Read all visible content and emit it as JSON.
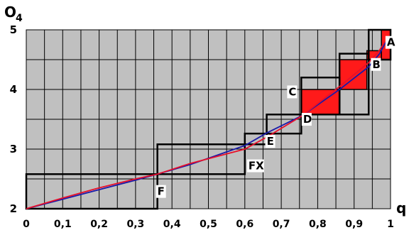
{
  "chart_data": {
    "type": "line",
    "title": "",
    "xlabel": "q",
    "ylabel": "O",
    "ylabel_sub": "4",
    "xlim": [
      0,
      1
    ],
    "ylim": [
      2,
      5
    ],
    "grid": true,
    "x_ticks": [
      {
        "value": 0,
        "label": "0"
      },
      {
        "value": 0.1,
        "label": "0,1"
      },
      {
        "value": 0.2,
        "label": "0,2"
      },
      {
        "value": 0.3,
        "label": "0,3"
      },
      {
        "value": 0.4,
        "label": "0,4"
      },
      {
        "value": 0.5,
        "label": "0,5"
      },
      {
        "value": 0.6,
        "label": "0,6"
      },
      {
        "value": 0.7,
        "label": "0,7"
      },
      {
        "value": 0.8,
        "label": "0,8"
      },
      {
        "value": 0.9,
        "label": "0,9"
      },
      {
        "value": 1,
        "label": "1"
      }
    ],
    "y_ticks": [
      {
        "value": 2,
        "label": "2"
      },
      {
        "value": 3,
        "label": "3"
      },
      {
        "value": 4,
        "label": "4"
      },
      {
        "value": 5,
        "label": "5"
      }
    ],
    "series": [
      {
        "color": "#1a1aa8",
        "x": [
          0,
          0.1,
          0.2,
          0.3,
          0.36,
          0.45,
          0.6,
          0.66,
          0.76,
          0.86,
          0.94,
          0.97,
          0.99
        ],
        "y": [
          2,
          2.16,
          2.32,
          2.48,
          2.58,
          2.74,
          3.06,
          3.27,
          3.57,
          4.0,
          4.38,
          4.6,
          4.83
        ]
      },
      {
        "color": "#e8102a",
        "x": [
          0,
          0.1,
          0.2,
          0.3,
          0.36,
          0.45,
          0.6,
          0.66,
          0.76,
          0.86,
          0.94,
          0.97,
          0.99
        ],
        "y": [
          2,
          2.18,
          2.35,
          2.5,
          2.58,
          2.76,
          3.0,
          3.2,
          3.57,
          4.05,
          4.45,
          4.66,
          4.86
        ]
      }
    ],
    "rectangles": [
      {
        "x0": 0,
        "x1": 0.36,
        "y0": 2,
        "y1": 2.58,
        "fill": "none"
      },
      {
        "x0": 0.36,
        "x1": 0.6,
        "y0": 2.58,
        "y1": 3.08,
        "fill": "none"
      },
      {
        "x0": 0.6,
        "x1": 0.66,
        "y0": 3.08,
        "y1": 3.26,
        "fill": "none"
      },
      {
        "x0": 0.66,
        "x1": 0.755,
        "y0": 3.26,
        "y1": 3.58,
        "fill": "none"
      },
      {
        "x0": 0.755,
        "x1": 0.86,
        "y0": 3.58,
        "y1": 4.2,
        "fill": "none"
      },
      {
        "x0": 0.86,
        "x1": 0.94,
        "y0": 3.58,
        "y1": 4.6,
        "fill": "none"
      },
      {
        "x0": 0.94,
        "x1": 1.0,
        "y0": 4.5,
        "y1": 5.0,
        "fill": "none"
      },
      {
        "x0": 0.755,
        "x1": 0.86,
        "y0": 3.58,
        "y1": 4.0,
        "fill": "#ff1a1a"
      },
      {
        "x0": 0.86,
        "x1": 0.935,
        "y0": 4.0,
        "y1": 4.5,
        "fill": "#ff1a1a"
      },
      {
        "x0": 0.935,
        "x1": 0.975,
        "y0": 4.5,
        "y1": 4.65,
        "fill": "#ff1a1a"
      },
      {
        "x0": 0.975,
        "x1": 1.0,
        "y0": 4.5,
        "y1": 5.0,
        "fill": "#ff1a1a"
      }
    ],
    "point_labels": [
      {
        "text": "A",
        "x": 0.99,
        "y": 4.73
      },
      {
        "text": "B",
        "x": 0.95,
        "y": 4.36
      },
      {
        "text": "C",
        "x": 0.72,
        "y": 3.9
      },
      {
        "text": "D",
        "x": 0.76,
        "y": 3.44
      },
      {
        "text": "E",
        "x": 0.66,
        "y": 3.07
      },
      {
        "text": "FX",
        "x": 0.61,
        "y": 2.66
      },
      {
        "text": "F",
        "x": 0.36,
        "y": 2.23
      }
    ]
  },
  "colors": {
    "plot_background": "#c0c0c0",
    "grid": "#000000",
    "highlight": "#ff1a1a"
  }
}
